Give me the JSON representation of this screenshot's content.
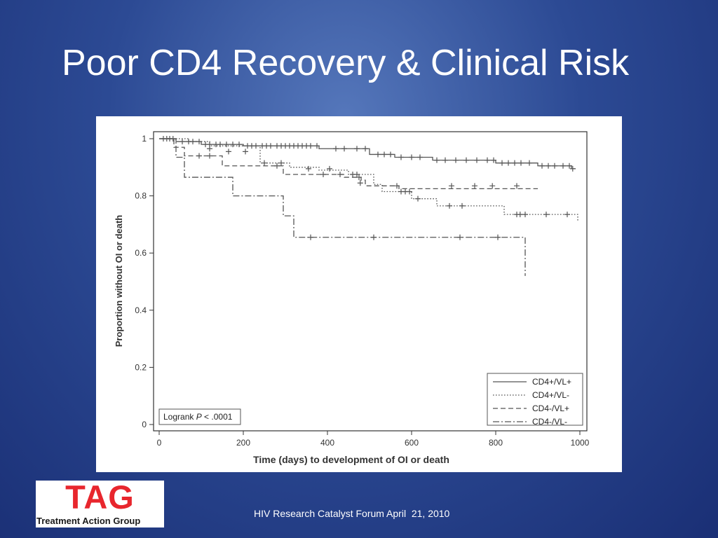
{
  "slide": {
    "title": "Poor CD4 Recovery & Clinical Risk",
    "footer": "HIV Research Catalyst Forum April  21, 2010"
  },
  "logo": {
    "mark": "TAG",
    "text": "Treatment Action Group"
  },
  "colors": {
    "background_dark": "#1a2f75",
    "background_light": "#5577bb",
    "logo_red": "#e8262d",
    "text": "#ffffff",
    "plot_ink": "#555555"
  },
  "chart_data": {
    "type": "line",
    "subtype": "kaplan-meier step curves with censor marks (+)",
    "xlabel": "Time (days) to development of OI or death",
    "ylabel": "Proportion without OI or death",
    "xlim": [
      0,
      1000
    ],
    "ylim": [
      0,
      1
    ],
    "xticks": [
      0,
      200,
      400,
      600,
      800,
      1000
    ],
    "yticks": [
      0,
      0.2,
      0.4,
      0.6,
      0.8,
      1
    ],
    "ytick_labels": [
      "0",
      "0.2",
      "0.4",
      "0.6",
      "0.8",
      "1"
    ],
    "xtick_labels": [
      "0",
      "200",
      "400",
      "600",
      "800",
      "1000"
    ],
    "grid": false,
    "legend_position": "bottom-right",
    "annotation": {
      "prefix": "Logrank ",
      "italic": "P",
      "suffix": " < .0001"
    },
    "series": [
      {
        "name": "CD4+/VL+",
        "dash": "solid",
        "steps": [
          [
            0,
            1.0
          ],
          [
            40,
            0.99
          ],
          [
            100,
            0.98
          ],
          [
            200,
            0.975
          ],
          [
            380,
            0.965
          ],
          [
            500,
            0.945
          ],
          [
            560,
            0.935
          ],
          [
            650,
            0.925
          ],
          [
            800,
            0.915
          ],
          [
            900,
            0.905
          ],
          [
            980,
            0.895
          ],
          [
            990,
            0.895
          ]
        ],
        "censors": [
          [
            10,
            1.0
          ],
          [
            18,
            1.0
          ],
          [
            25,
            1.0
          ],
          [
            33,
            1.0
          ],
          [
            55,
            0.99
          ],
          [
            70,
            0.99
          ],
          [
            80,
            0.99
          ],
          [
            95,
            0.99
          ],
          [
            110,
            0.98
          ],
          [
            120,
            0.98
          ],
          [
            135,
            0.98
          ],
          [
            145,
            0.98
          ],
          [
            160,
            0.98
          ],
          [
            175,
            0.98
          ],
          [
            190,
            0.98
          ],
          [
            210,
            0.975
          ],
          [
            220,
            0.975
          ],
          [
            230,
            0.975
          ],
          [
            245,
            0.975
          ],
          [
            255,
            0.975
          ],
          [
            265,
            0.975
          ],
          [
            280,
            0.975
          ],
          [
            290,
            0.975
          ],
          [
            300,
            0.975
          ],
          [
            310,
            0.975
          ],
          [
            320,
            0.975
          ],
          [
            330,
            0.975
          ],
          [
            340,
            0.975
          ],
          [
            350,
            0.975
          ],
          [
            360,
            0.975
          ],
          [
            375,
            0.975
          ],
          [
            420,
            0.965
          ],
          [
            440,
            0.965
          ],
          [
            470,
            0.965
          ],
          [
            490,
            0.965
          ],
          [
            520,
            0.945
          ],
          [
            535,
            0.945
          ],
          [
            550,
            0.945
          ],
          [
            575,
            0.935
          ],
          [
            600,
            0.935
          ],
          [
            620,
            0.935
          ],
          [
            660,
            0.925
          ],
          [
            680,
            0.925
          ],
          [
            705,
            0.925
          ],
          [
            730,
            0.925
          ],
          [
            755,
            0.925
          ],
          [
            780,
            0.925
          ],
          [
            795,
            0.925
          ],
          [
            815,
            0.915
          ],
          [
            830,
            0.915
          ],
          [
            845,
            0.915
          ],
          [
            860,
            0.915
          ],
          [
            880,
            0.915
          ],
          [
            910,
            0.905
          ],
          [
            925,
            0.905
          ],
          [
            940,
            0.905
          ],
          [
            960,
            0.905
          ],
          [
            975,
            0.905
          ],
          [
            983,
            0.895
          ]
        ]
      },
      {
        "name": "CD4+/VL-",
        "dash": "dotted",
        "steps": [
          [
            0,
            1.0
          ],
          [
            70,
            0.99
          ],
          [
            120,
            0.975
          ],
          [
            240,
            0.915
          ],
          [
            310,
            0.9
          ],
          [
            380,
            0.89
          ],
          [
            450,
            0.875
          ],
          [
            510,
            0.84
          ],
          [
            530,
            0.815
          ],
          [
            600,
            0.79
          ],
          [
            660,
            0.765
          ],
          [
            820,
            0.735
          ],
          [
            995,
            0.71
          ]
        ],
        "censors": [
          [
            120,
            0.965
          ],
          [
            165,
            0.955
          ],
          [
            205,
            0.955
          ],
          [
            250,
            0.915
          ],
          [
            290,
            0.915
          ],
          [
            355,
            0.895
          ],
          [
            405,
            0.895
          ],
          [
            460,
            0.875
          ],
          [
            475,
            0.865
          ],
          [
            478,
            0.845
          ],
          [
            565,
            0.835
          ],
          [
            575,
            0.815
          ],
          [
            585,
            0.815
          ],
          [
            595,
            0.815
          ],
          [
            615,
            0.79
          ],
          [
            690,
            0.765
          ],
          [
            720,
            0.765
          ],
          [
            850,
            0.735
          ],
          [
            858,
            0.735
          ],
          [
            870,
            0.735
          ],
          [
            920,
            0.735
          ],
          [
            970,
            0.735
          ]
        ]
      },
      {
        "name": "CD4-/VL+",
        "dash": "dashed",
        "steps": [
          [
            0,
            1.0
          ],
          [
            35,
            0.97
          ],
          [
            60,
            0.94
          ],
          [
            150,
            0.905
          ],
          [
            295,
            0.875
          ],
          [
            440,
            0.865
          ],
          [
            480,
            0.855
          ],
          [
            490,
            0.835
          ],
          [
            570,
            0.825
          ],
          [
            900,
            0.825
          ]
        ],
        "censors": [
          [
            95,
            0.94
          ],
          [
            120,
            0.94
          ],
          [
            280,
            0.905
          ],
          [
            390,
            0.875
          ],
          [
            430,
            0.875
          ],
          [
            470,
            0.875
          ],
          [
            695,
            0.835
          ],
          [
            750,
            0.835
          ],
          [
            792,
            0.835
          ],
          [
            850,
            0.835
          ]
        ]
      },
      {
        "name": "CD4-/VL-",
        "dash": "dash-dot",
        "steps": [
          [
            0,
            1.0
          ],
          [
            40,
            0.935
          ],
          [
            60,
            0.865
          ],
          [
            175,
            0.8
          ],
          [
            295,
            0.73
          ],
          [
            320,
            0.655
          ],
          [
            870,
            0.52
          ]
        ],
        "censors": [
          [
            360,
            0.655
          ],
          [
            510,
            0.655
          ],
          [
            715,
            0.655
          ],
          [
            805,
            0.655
          ]
        ]
      }
    ]
  }
}
